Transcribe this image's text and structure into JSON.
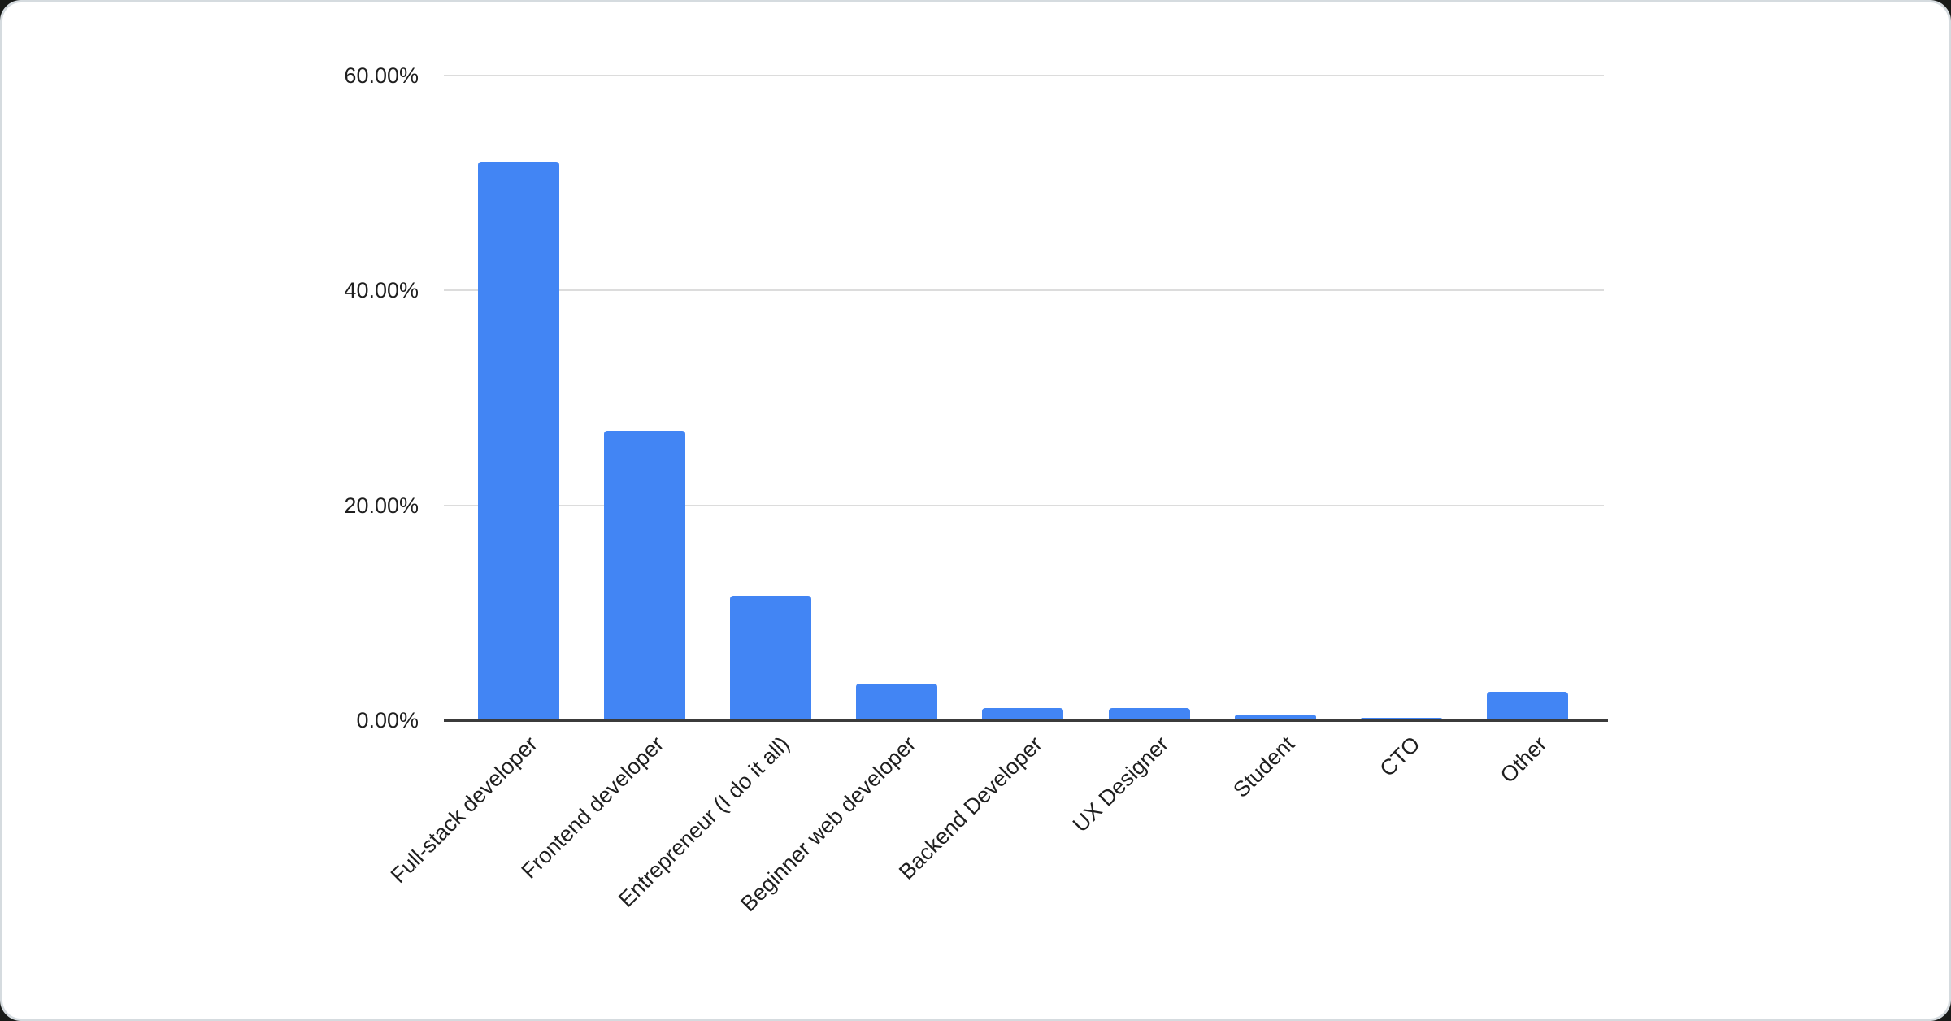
{
  "colors": {
    "bar": "#4285f4",
    "gridline": "#dcdcdc",
    "baseline": "#3b3b3b",
    "label_text": "#1f1f1f",
    "card_background": "#ffffff",
    "card_border": "#d5dbdf",
    "page_backdrop": "#181a18"
  },
  "chart_data": {
    "type": "bar",
    "title": "",
    "xlabel": "",
    "ylabel": "",
    "categories": [
      "Full-stack developer",
      "Frontend developer",
      "Entrepreneur (I do it all)",
      "Beginner web developer",
      "Backend Developer",
      "UX Designer",
      "Student",
      "CTO",
      "Other"
    ],
    "values": [
      52.0,
      26.9,
      11.55,
      3.4,
      1.15,
      1.15,
      0.45,
      0.25,
      2.65
    ],
    "value_unit": "percent",
    "ylim": [
      0,
      60
    ],
    "ytick_values": [
      0,
      20,
      40,
      60
    ],
    "yticks": [
      "0.00%",
      "20.00%",
      "40.00%",
      "60.00%"
    ],
    "grid": true,
    "legend_position": "none",
    "x_label_rotation_deg": 45
  }
}
